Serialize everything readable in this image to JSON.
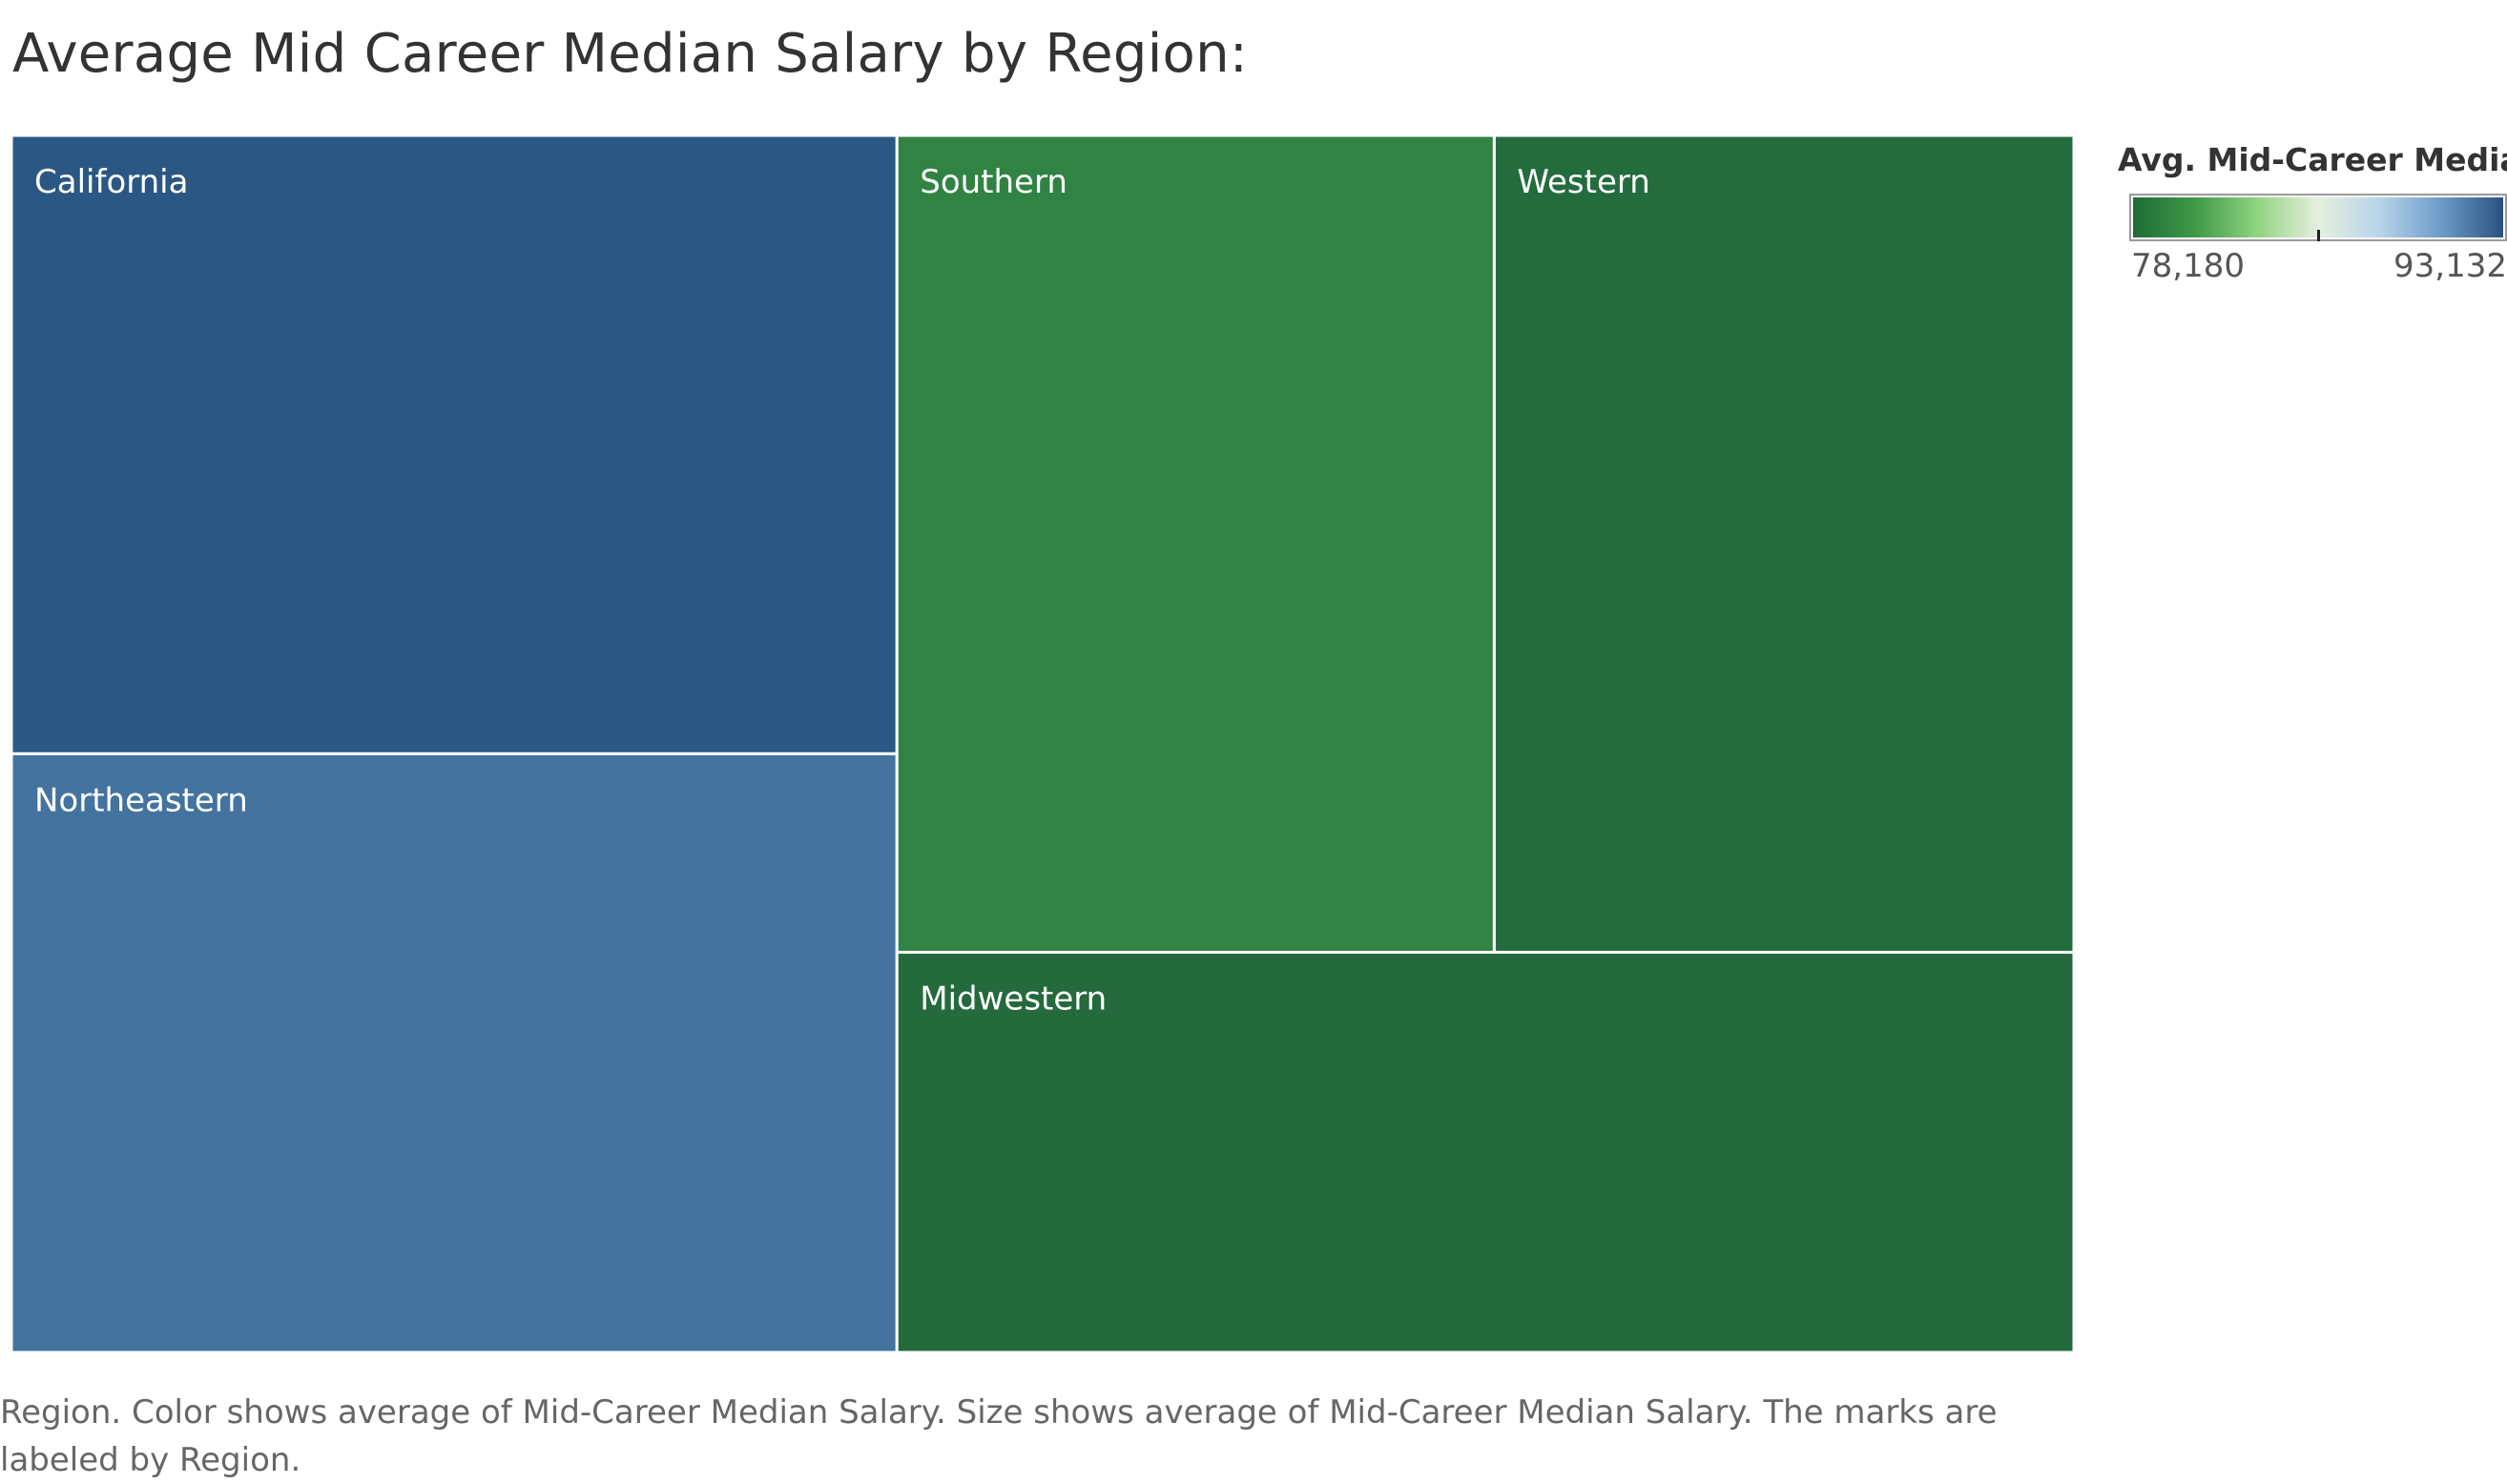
{
  "title": "Average Mid Career Median Salary by Region:",
  "chart_data": {
    "type": "treemap",
    "measure": "Avg. Mid-Career Median Salary",
    "items": [
      {
        "label": "California",
        "value": 90900,
        "color": "#2b5784"
      },
      {
        "label": "Northeastern",
        "value": 88000,
        "color": "#44739f"
      },
      {
        "label": "Southern",
        "value": 81000,
        "color": "#308343"
      },
      {
        "label": "Western",
        "value": 78600,
        "color": "#246c3e"
      },
      {
        "label": "Midwestern",
        "value": 78180,
        "color": "#246a3d"
      }
    ],
    "legend": {
      "title": "Avg. Mid-Career Media..",
      "min_label": "78,180",
      "max_label": "93,132",
      "min": 78180,
      "max": 93132,
      "center": 85656,
      "gradient_colors": [
        "#1f6b35",
        "#3f9a48",
        "#8fd37f",
        "#e6efdf",
        "#b7d4ea",
        "#6d9bc8",
        "#2a5280"
      ],
      "position": "right"
    }
  },
  "caption": "Region.  Color shows average of Mid-Career Median Salary.  Size shows average of Mid-Career Median Salary.  The marks are labeled by Region."
}
